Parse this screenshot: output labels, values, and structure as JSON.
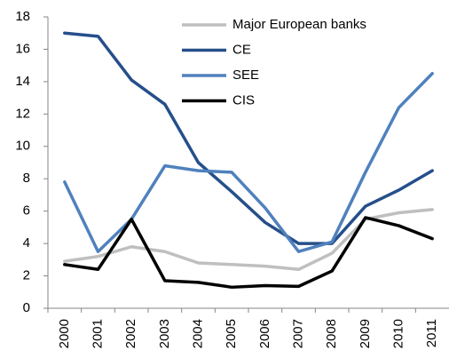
{
  "chart_data": {
    "type": "line",
    "categories": [
      "2000",
      "2001",
      "2002",
      "2003",
      "2004",
      "2005",
      "2006",
      "2007",
      "2008",
      "2009",
      "2010",
      "2011"
    ],
    "series": [
      {
        "name": "Major European banks",
        "color": "#bfbfbf",
        "values": [
          2.9,
          3.2,
          3.8,
          3.5,
          2.8,
          2.7,
          2.6,
          2.4,
          3.4,
          5.5,
          5.9,
          6.1
        ]
      },
      {
        "name": "CE",
        "color": "#254f8a",
        "values": [
          17.0,
          16.8,
          14.1,
          12.6,
          9.0,
          7.2,
          5.3,
          4.0,
          4.0,
          6.3,
          7.3,
          8.5
        ]
      },
      {
        "name": "SEE",
        "color": "#4f81bd",
        "values": [
          7.8,
          3.5,
          5.5,
          8.8,
          8.5,
          8.4,
          6.2,
          3.5,
          4.1,
          8.4,
          12.4,
          14.5
        ]
      },
      {
        "name": "CIS",
        "color": "#000000",
        "values": [
          2.7,
          2.4,
          5.5,
          1.7,
          1.6,
          1.3,
          1.4,
          1.35,
          2.3,
          5.6,
          5.1,
          4.3
        ]
      }
    ],
    "ylim": [
      0,
      18
    ],
    "yticks": [
      0,
      2,
      4,
      6,
      8,
      10,
      12,
      14,
      16,
      18
    ],
    "grid": false,
    "legend": "top-right"
  }
}
